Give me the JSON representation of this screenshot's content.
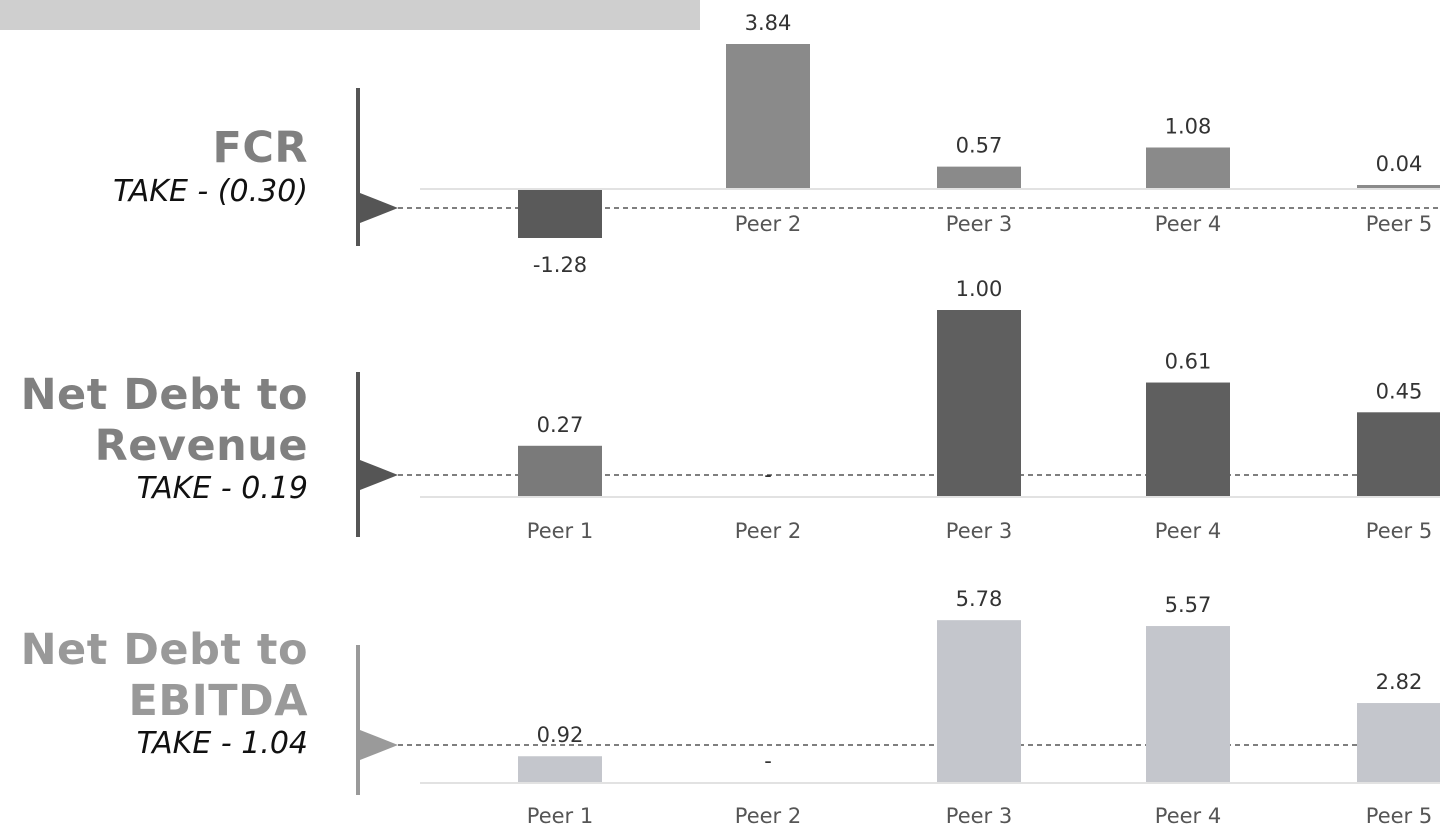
{
  "chart_data": [
    {
      "type": "bar",
      "title": "FCR",
      "subtitle": "TAKE - (0.30)",
      "take_value": -0.3,
      "categories": [
        "",
        "Peer 2",
        "Peer 3",
        "Peer 4",
        "Peer 5"
      ],
      "values": [
        -1.28,
        3.84,
        0.57,
        1.08,
        0.04
      ],
      "value_labels": [
        "-1.28",
        "3.84",
        "0.57",
        "1.08",
        "0.04"
      ],
      "colors": {
        "bar": "#8a8a8a",
        "negative_bar": "#5a5a5a",
        "take_marker": "#555555"
      }
    },
    {
      "type": "bar",
      "title": "Net Debt to Revenue",
      "title_lines": [
        "Net Debt to",
        "Revenue"
      ],
      "subtitle": "TAKE - 0.19",
      "take_value": 0.19,
      "categories": [
        "Peer 1",
        "Peer 2",
        "Peer 3",
        "Peer 4",
        "Peer 5"
      ],
      "values": [
        0.27,
        null,
        1.0,
        0.61,
        0.45
      ],
      "value_labels": [
        "0.27",
        "-",
        "1.00",
        "0.61",
        "0.45"
      ],
      "colors": {
        "bar": "#5f5f5f",
        "first_bar": "#7a7a7a",
        "take_marker": "#555555"
      }
    },
    {
      "type": "bar",
      "title": "Net Debt to EBITDA",
      "title_lines": [
        "Net Debt to",
        "EBITDA"
      ],
      "subtitle": "TAKE - 1.04",
      "take_value": 1.04,
      "categories": [
        "Peer 1",
        "Peer 2",
        "Peer 3",
        "Peer 4",
        "Peer 5"
      ],
      "values": [
        0.92,
        null,
        5.78,
        5.57,
        2.82
      ],
      "value_labels": [
        "0.92",
        "-",
        "5.78",
        "5.57",
        "2.82"
      ],
      "colors": {
        "bar": "#c4c6cc",
        "take_marker": "#9a9a9a"
      }
    }
  ]
}
